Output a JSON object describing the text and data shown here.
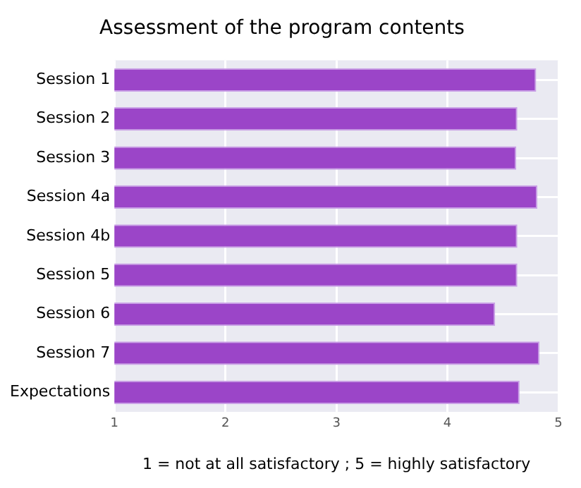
{
  "chart_data": {
    "type": "bar",
    "orientation": "horizontal",
    "title": "Assessment of the program contents",
    "xlabel": "1 = not at all satisfactory ; 5 = highly satisfactory",
    "categories": [
      "Session 1",
      "Session 2",
      "Session 3",
      "Session 4a",
      "Session 4b",
      "Session 5",
      "Session 6",
      "Session 7",
      "Expectations"
    ],
    "values": [
      4.8,
      4.63,
      4.62,
      4.81,
      4.63,
      4.63,
      4.43,
      4.83,
      4.65
    ],
    "color": "#9b45c8",
    "xlim": [
      1,
      5
    ],
    "xticks": [
      1,
      2,
      3,
      4,
      5
    ],
    "grid": true,
    "legend": false
  }
}
